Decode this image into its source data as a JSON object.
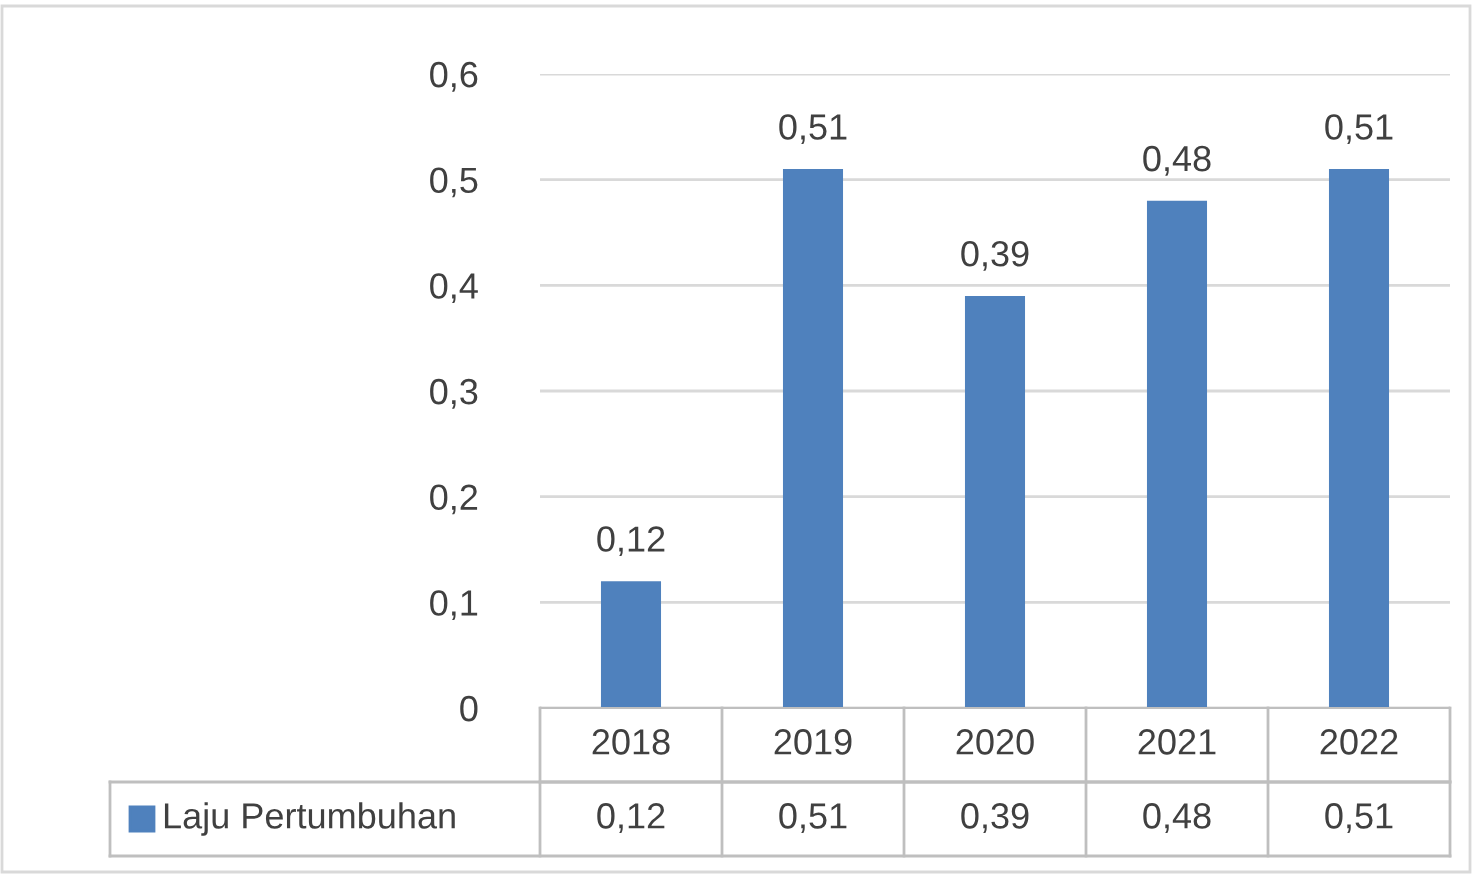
{
  "chart_data": {
    "type": "bar",
    "categories": [
      "2018",
      "2019",
      "2020",
      "2021",
      "2022"
    ],
    "series": [
      {
        "name": "Laju Pertumbuhan",
        "color": "#4f81bd",
        "values": [
          0.12,
          0.51,
          0.39,
          0.48,
          0.51
        ],
        "value_labels": [
          "0,12",
          "0,51",
          "0,39",
          "0,48",
          "0,51"
        ]
      }
    ],
    "ylim": [
      0,
      0.6
    ],
    "yticks": [
      {
        "value": 0,
        "label": "0"
      },
      {
        "value": 0.1,
        "label": "0,1"
      },
      {
        "value": 0.2,
        "label": "0,2"
      },
      {
        "value": 0.3,
        "label": "0,3"
      },
      {
        "value": 0.4,
        "label": "0,4"
      },
      {
        "value": 0.5,
        "label": "0,5"
      },
      {
        "value": 0.6,
        "label": "0,6"
      }
    ],
    "grid": "y",
    "legend": "bottom"
  }
}
